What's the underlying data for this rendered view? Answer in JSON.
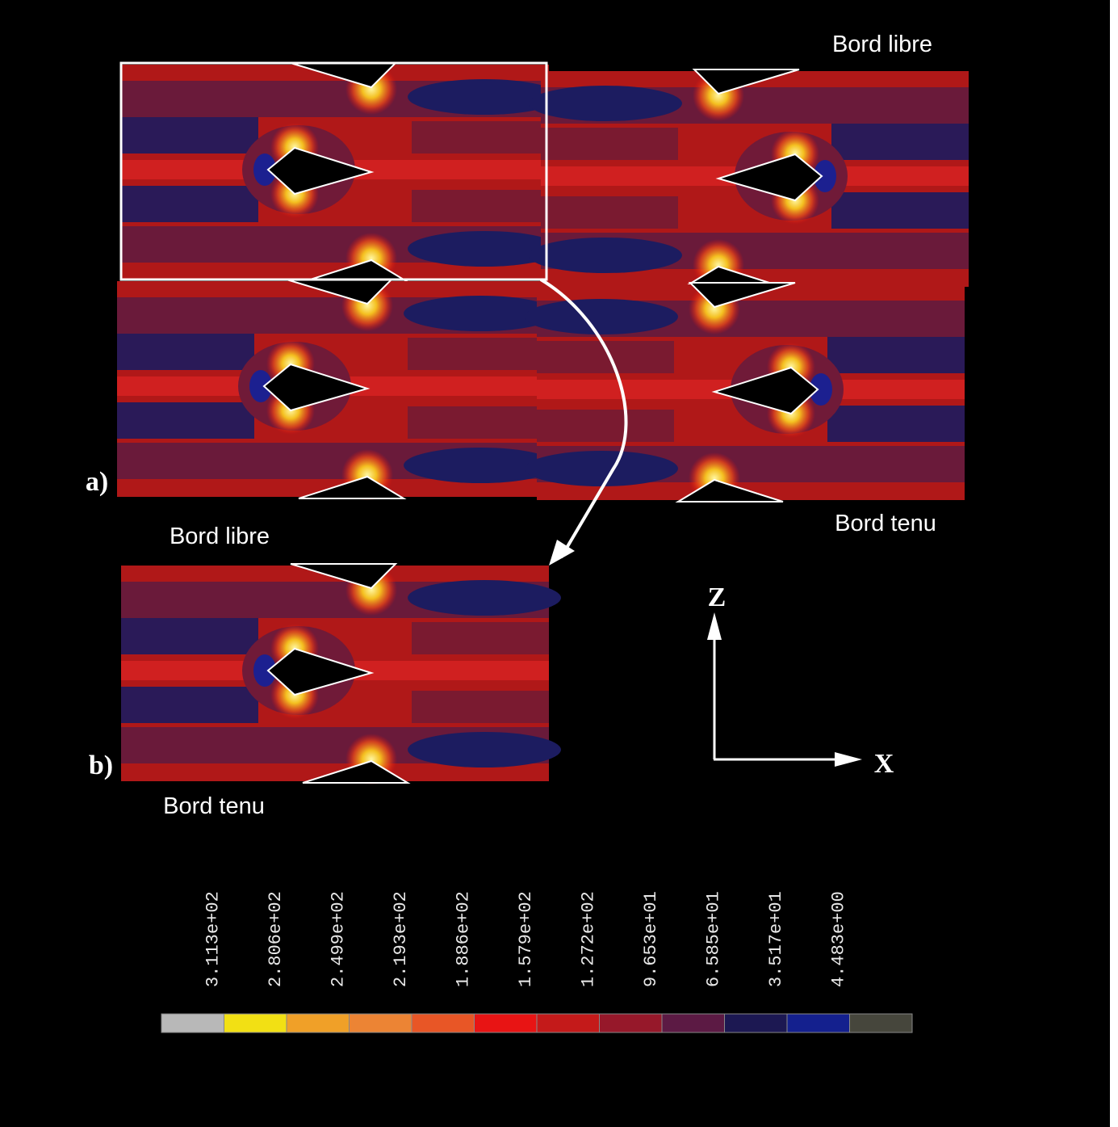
{
  "panel_a": {
    "label": "a)",
    "top_edge": "Bord libre",
    "bottom_edge": "Bord tenu"
  },
  "panel_b": {
    "label": "b)",
    "top_edge": "Bord libre",
    "bottom_edge": "Bord tenu"
  },
  "axes": {
    "z": "Z",
    "x": "X"
  },
  "legend": {
    "labels": [
      "3.113e+02",
      "2.806e+02",
      "2.499e+02",
      "2.193e+02",
      "1.886e+02",
      "1.579e+02",
      "1.272e+02",
      "9.653e+01",
      "6.585e+01",
      "3.517e+01",
      "4.483e+00"
    ],
    "colors": [
      "#b8b8b8",
      "#f2e014",
      "#f0a028",
      "#ec8434",
      "#e85626",
      "#e81414",
      "#c41a1a",
      "#96182a",
      "#5c1a44",
      "#1c1852",
      "#14208e",
      "#46463c"
    ]
  }
}
